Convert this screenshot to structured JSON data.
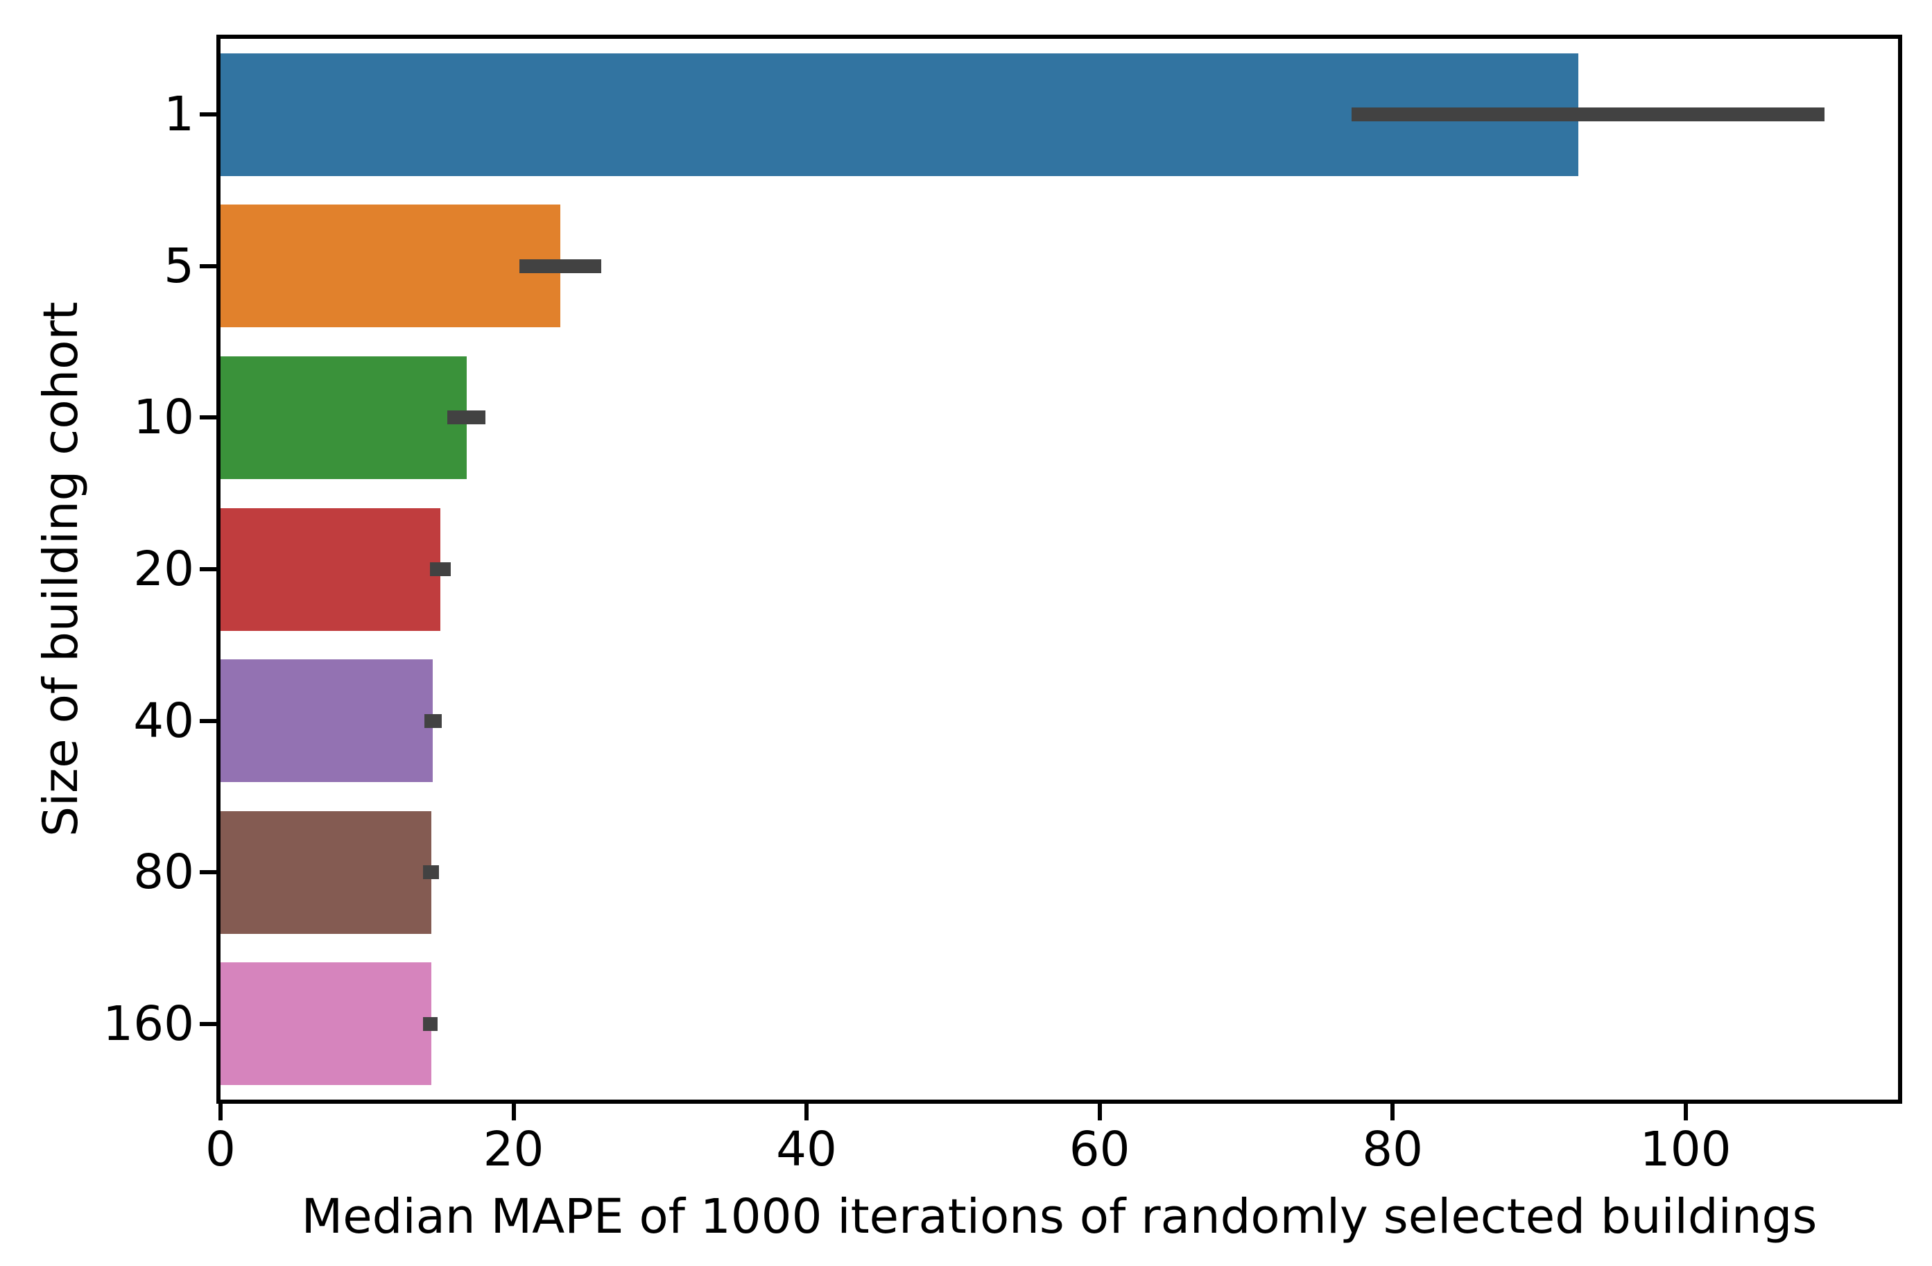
{
  "chart_data": {
    "type": "bar",
    "orientation": "horizontal",
    "title": "",
    "xlabel": "Median MAPE of 1000 iterations of randomly selected buildings",
    "ylabel": "Size of building cohort",
    "categories": [
      "1",
      "5",
      "10",
      "20",
      "40",
      "80",
      "160"
    ],
    "values": [
      92.7,
      23.2,
      16.8,
      15.0,
      14.5,
      14.4,
      14.4
    ],
    "error_bars": [
      [
        77.2,
        109.5
      ],
      [
        20.4,
        26.0
      ],
      [
        15.5,
        18.1
      ],
      [
        14.3,
        15.7
      ],
      [
        13.9,
        15.1
      ],
      [
        13.8,
        14.9
      ],
      [
        13.8,
        14.8
      ]
    ],
    "bar_colors": [
      "#3274a1",
      "#e1812c",
      "#3a923a",
      "#c03d3e",
      "#9372b2",
      "#845b52",
      "#d684bd"
    ],
    "error_color": "#424242",
    "spine_color": "#000000",
    "background_color": "#ffffff",
    "xlim": [
      0,
      114.5
    ],
    "xticks": [
      0,
      20,
      40,
      60,
      80,
      100
    ],
    "grid": false,
    "legend": null
  }
}
